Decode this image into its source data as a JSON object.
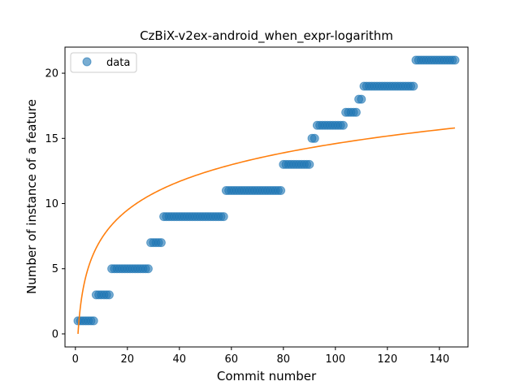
{
  "chart_data": {
    "type": "scatter",
    "title": "CzBiX-v2ex-android_when_expr-logarithm",
    "xlabel": "Commit number",
    "ylabel": "Number of instance of a feature",
    "xlim": [
      -4,
      151
    ],
    "ylim": [
      -1,
      22
    ],
    "xticks": [
      0,
      20,
      40,
      60,
      80,
      100,
      120,
      140
    ],
    "yticks": [
      0,
      5,
      10,
      15,
      20
    ],
    "grid": false,
    "legend": {
      "placement": "upper-left",
      "entries": [
        "data"
      ]
    },
    "colors": {
      "scatter": "#1f77b4",
      "fit": "#ff7f0e"
    },
    "series": [
      {
        "name": "data",
        "kind": "scatter",
        "segments": [
          {
            "x_start": 1,
            "x_end": 7,
            "y": 1
          },
          {
            "x_start": 8,
            "x_end": 13,
            "y": 3
          },
          {
            "x_start": 14,
            "x_end": 28,
            "y": 5
          },
          {
            "x_start": 29,
            "x_end": 33,
            "y": 7
          },
          {
            "x_start": 34,
            "x_end": 57,
            "y": 9
          },
          {
            "x_start": 58,
            "x_end": 79,
            "y": 11
          },
          {
            "x_start": 80,
            "x_end": 90,
            "y": 13
          },
          {
            "x_start": 91,
            "x_end": 92,
            "y": 15
          },
          {
            "x_start": 93,
            "x_end": 103,
            "y": 16
          },
          {
            "x_start": 104,
            "x_end": 108,
            "y": 17
          },
          {
            "x_start": 109,
            "x_end": 110,
            "y": 18
          },
          {
            "x_start": 111,
            "x_end": 130,
            "y": 19
          },
          {
            "x_start": 131,
            "x_end": 146,
            "y": 21
          }
        ]
      },
      {
        "kind": "line",
        "model": "logarithmic",
        "a": 3.17,
        "b": 0.0,
        "x_range": [
          1,
          146
        ]
      }
    ]
  }
}
